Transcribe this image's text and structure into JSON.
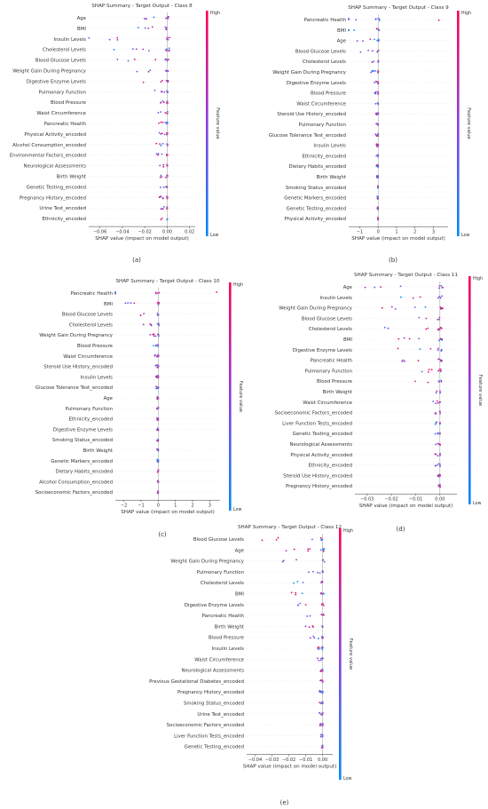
{
  "panel_labels": [
    "(a)",
    "(b)",
    "(c)",
    "(d)",
    "(e)"
  ],
  "colorbar": {
    "high": "High",
    "low": "Low",
    "label": "Feature value",
    "color_high": "#ff0052",
    "color_low": "#008bfb",
    "color_mid": "#8c3ee0"
  },
  "chart_data": [
    {
      "type": "scatter",
      "title": "SHAP Summary - Target Output - Class 8",
      "xlabel": "SHAP value (impact on model output)",
      "xlim": [
        -0.07,
        0.025
      ],
      "xticks": [
        -0.06,
        -0.04,
        -0.02,
        0.0,
        0.02
      ],
      "xtick_labels": [
        "−0.06",
        "−0.04",
        "−0.02",
        "0.00",
        "0.02"
      ],
      "features": [
        "Age",
        "BMI",
        "Insulin Levels",
        "Cholesterol Levels",
        "Blood Glucose Levels",
        "Weight Gain During Pregnancy",
        "Digestive Enzyme Levels",
        "Pulmonary Function",
        "Blood Pressure",
        "Waist Circumference",
        "Pancreatic Health",
        "Physical Activity_encoded",
        "Alcohol Consumption_encoded",
        "Environmental Factors_encoded",
        "Neurological Assessments",
        "Birth Weight",
        "Genetic Testing_encoded",
        "Pregnancy History_encoded",
        "Urine Test_encoded",
        "Ethnicity_encoded"
      ],
      "spread": [
        0.04,
        0.05,
        0.07,
        0.065,
        0.045,
        0.04,
        0.025,
        0.012,
        0.01,
        0.008,
        0.01,
        0.01,
        0.01,
        0.01,
        0.008,
        0.007,
        0.007,
        0.007,
        0.006,
        0.006
      ]
    },
    {
      "type": "scatter",
      "title": "SHAP Summary - Target Output - Class 9",
      "xlabel": "SHAP value (impact on model output)",
      "xlim": [
        -1.6,
        3.8
      ],
      "xticks": [
        -1,
        0,
        1,
        2,
        3
      ],
      "xtick_labels": [
        "−1",
        "0",
        "1",
        "2",
        "3"
      ],
      "features": [
        "Pancreatic Health",
        "BMI",
        "Age",
        "Blood Glucose Levels",
        "Cholesterol Levels",
        "Weight Gain During Pregnancy",
        "Digestive Enzyme Levels",
        "Blood Pressure",
        "Waist Circumference",
        "Steroid Use History_encoded",
        "Pulmonary Function",
        "Glucose Tolerance Test_encoded",
        "Insulin Levels",
        "Ethnicity_encoded",
        "Dietary Habits_encoded",
        "Birth Weight",
        "Smoking Status_encoded",
        "Genetic Markers_encoded",
        "Genetic Testing_encoded",
        "Physical Activity_encoded"
      ],
      "spread": [
        3.3,
        2.0,
        1.3,
        1.1,
        0.8,
        0.5,
        0.3,
        0.2,
        0.2,
        0.15,
        0.15,
        0.15,
        0.1,
        0.1,
        0.1,
        0.08,
        0.08,
        0.06,
        0.06,
        0.05
      ]
    },
    {
      "type": "scatter",
      "title": "SHAP Summary - Target Output - Class 10",
      "xlabel": "SHAP value (impact on model output)",
      "xlim": [
        -2.5,
        3.6
      ],
      "xticks": [
        -2,
        -1,
        0,
        1,
        2,
        3
      ],
      "xtick_labels": [
        "−2",
        "−1",
        "0",
        "1",
        "2",
        "3"
      ],
      "features": [
        "Pancreatic Health",
        "BMI",
        "Blood Glucose Levels",
        "Cholesterol Levels",
        "Weight Gain During Pregnancy",
        "Blood Pressure",
        "Waist Circumference",
        "Steroid Use History_encoded",
        "Insulin Levels",
        "Glucose Tolerance Test_encoded",
        "Age",
        "Pulmonary Function",
        "Ethnicity_encoded",
        "Digestive Enzyme Levels",
        "Smoking Status_encoded",
        "Birth Weight",
        "Genetic Markers_encoded",
        "Dietary Habits_encoded",
        "Alcohol Consumption_encoded",
        "Socioeconomic Factors_encoded"
      ],
      "spread": [
        3.4,
        2.0,
        1.2,
        1.1,
        0.6,
        0.3,
        0.2,
        0.2,
        0.15,
        0.15,
        0.1,
        0.1,
        0.1,
        0.1,
        0.08,
        0.08,
        0.06,
        0.06,
        0.05,
        0.05
      ]
    },
    {
      "type": "scatter",
      "title": "SHAP Summary - Target Output - Class 11",
      "xlabel": "SHAP value (impact on model output)",
      "xlim": [
        -0.035,
        0.007
      ],
      "xticks": [
        -0.03,
        -0.02,
        -0.01,
        0.0
      ],
      "xtick_labels": [
        "−0.03",
        "−0.02",
        "−0.01",
        "0.00"
      ],
      "features": [
        "Age",
        "Insulin Levels",
        "Weight Gain During Pregnancy",
        "Blood Glucose Levels",
        "Cholesterol Levels",
        "BMI",
        "Digestive Enzyme Levels",
        "Pancreatic Health",
        "Pulmonary Function",
        "Blood Pressure",
        "Birth Weight",
        "Waist Circumference",
        "Socioeconomic Factors_encoded",
        "Liver Function Tests_encoded",
        "Genetic Testing_encoded",
        "Neurological Assessments",
        "Physical Activity_encoded",
        "Ethnicity_encoded",
        "Steroid Use History_encoded",
        "Pregnancy History_encoded"
      ],
      "spread": [
        0.031,
        0.022,
        0.03,
        0.026,
        0.025,
        0.025,
        0.024,
        0.02,
        0.018,
        0.017,
        0.004,
        0.003,
        0.002,
        0.002,
        0.002,
        0.002,
        0.002,
        0.002,
        0.001,
        0.001
      ]
    },
    {
      "type": "scatter",
      "title": "SHAP Summary - Target Output - Class 12",
      "xlabel": "SHAP value (impact on model output)",
      "xlim": [
        -0.045,
        0.006
      ],
      "xticks": [
        -0.04,
        -0.03,
        -0.02,
        -0.01,
        0.0
      ],
      "xtick_labels": [
        "−0.04",
        "−0.03",
        "−0.02",
        "−0.01",
        "0.00"
      ],
      "features": [
        "Blood Glucose Levels",
        "Age",
        "Weight Gain During Pregnancy",
        "Pulmonary Function",
        "Cholesterol Levels",
        "BMI",
        "Digestive Enzyme Levels",
        "Pancreatic Health",
        "Birth Weight",
        "Blood Pressure",
        "Insulin Levels",
        "Waist Circumference",
        "Neurological Assessments",
        "Previous Gestational Diabetes_encoded",
        "Pregnancy History_encoded",
        "Smoking Status_encoded",
        "Urine Test_encoded",
        "Socioeconomic Factors_encoded",
        "Liver Function Tests_encoded",
        "Genetic Testing_encoded"
      ],
      "spread": [
        0.04,
        0.027,
        0.027,
        0.01,
        0.022,
        0.025,
        0.02,
        0.024,
        0.012,
        0.01,
        0.006,
        0.003,
        0.002,
        0.002,
        0.002,
        0.002,
        0.002,
        0.002,
        0.001,
        0.001
      ]
    }
  ]
}
